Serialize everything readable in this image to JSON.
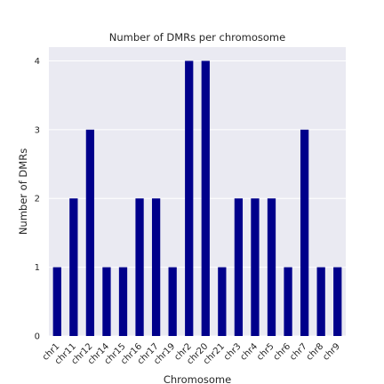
{
  "chart_data": {
    "type": "bar",
    "title": "Number of DMRs per chromosome",
    "xlabel": "Chromosome",
    "ylabel": "Number of DMRs",
    "categories": [
      "chr1",
      "chr11",
      "chr12",
      "chr14",
      "chr15",
      "chr16",
      "chr17",
      "chr19",
      "chr2",
      "chr20",
      "chr21",
      "chr3",
      "chr4",
      "chr5",
      "chr6",
      "chr7",
      "chr8",
      "chr9"
    ],
    "values": [
      1,
      2,
      3,
      1,
      1,
      2,
      2,
      1,
      4,
      4,
      1,
      2,
      2,
      2,
      1,
      3,
      1,
      1
    ],
    "ylim": [
      0,
      4.2
    ],
    "yticks": [
      0,
      1,
      2,
      3,
      4
    ],
    "grid": true,
    "colors": {
      "bar": "#00008b",
      "plot_bg": "#eaeaf2",
      "grid": "#ffffff"
    }
  }
}
